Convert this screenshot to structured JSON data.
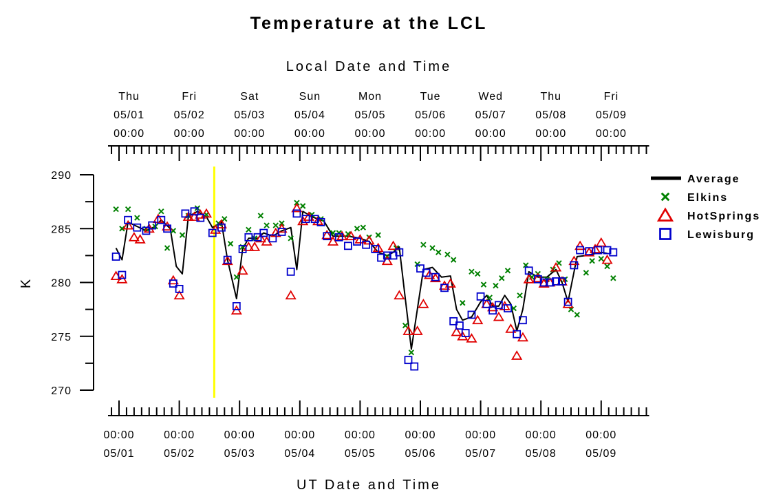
{
  "chart_data": {
    "type": "line",
    "title": "Temperature at the LCL",
    "top_axis_label": "Local Date and Time",
    "xlabel": "UT Date and Time",
    "ylabel": "K",
    "ylim": [
      270,
      290
    ],
    "y_ticks": [
      "270",
      "275",
      "280",
      "285",
      "290"
    ],
    "x_unit": "days since 05/01 00:00 UT",
    "xlim": [
      0,
      8.75
    ],
    "bottom_ticks": [
      {
        "time": "00:00",
        "date": "05/01"
      },
      {
        "time": "00:00",
        "date": "05/02"
      },
      {
        "time": "00:00",
        "date": "05/03"
      },
      {
        "time": "00:00",
        "date": "05/04"
      },
      {
        "time": "00:00",
        "date": "05/05"
      },
      {
        "time": "00:00",
        "date": "05/06"
      },
      {
        "time": "00:00",
        "date": "05/07"
      },
      {
        "time": "00:00",
        "date": "05/08"
      },
      {
        "time": "00:00",
        "date": "05/09"
      }
    ],
    "top_ticks": [
      {
        "day": "Thu",
        "date": "05/01",
        "time": "00:00"
      },
      {
        "day": "Fri",
        "date": "05/02",
        "time": "00:00"
      },
      {
        "day": "Sat",
        "date": "05/03",
        "time": "00:00"
      },
      {
        "day": "Sun",
        "date": "05/04",
        "time": "00:00"
      },
      {
        "day": "Mon",
        "date": "05/05",
        "time": "00:00"
      },
      {
        "day": "Tue",
        "date": "05/06",
        "time": "00:00"
      },
      {
        "day": "Wed",
        "date": "05/07",
        "time": "00:00"
      },
      {
        "day": "Thu",
        "date": "05/08",
        "time": "00:00"
      },
      {
        "day": "Fri",
        "date": "05/09",
        "time": "00:00"
      }
    ],
    "marker_line": {
      "x": 1.58,
      "color": "#ffff00"
    },
    "legend_position": "right",
    "series": [
      {
        "name": "Average",
        "marker": "line",
        "color": "#000000",
        "points": [
          [
            -0.05,
            283.2
          ],
          [
            0.05,
            282.1
          ],
          [
            0.15,
            285.6
          ],
          [
            0.3,
            285.2
          ],
          [
            0.45,
            284.8
          ],
          [
            0.6,
            285.2
          ],
          [
            0.7,
            285.8
          ],
          [
            0.85,
            285.0
          ],
          [
            0.95,
            281.5
          ],
          [
            1.05,
            280.8
          ],
          [
            1.15,
            286.1
          ],
          [
            1.3,
            286.6
          ],
          [
            1.45,
            286.1
          ],
          [
            1.55,
            285.1
          ],
          [
            1.7,
            285.6
          ],
          [
            1.8,
            282.1
          ],
          [
            1.95,
            278.5
          ],
          [
            2.05,
            283.1
          ],
          [
            2.15,
            284.1
          ],
          [
            2.3,
            284.1
          ],
          [
            2.4,
            284.6
          ],
          [
            2.55,
            284.3
          ],
          [
            2.7,
            284.8
          ],
          [
            2.85,
            285.1
          ],
          [
            2.95,
            281.2
          ],
          [
            3.05,
            286.6
          ],
          [
            3.2,
            286.1
          ],
          [
            3.4,
            285.7
          ],
          [
            3.55,
            284.3
          ],
          [
            3.8,
            284.3
          ],
          [
            4.0,
            284.1
          ],
          [
            4.15,
            283.8
          ],
          [
            4.3,
            282.8
          ],
          [
            4.45,
            282.5
          ],
          [
            4.55,
            282.8
          ],
          [
            4.65,
            283.3
          ],
          [
            4.75,
            278.5
          ],
          [
            4.85,
            273.8
          ],
          [
            4.95,
            277.5
          ],
          [
            5.05,
            281.2
          ],
          [
            5.2,
            281.4
          ],
          [
            5.35,
            280.5
          ],
          [
            5.5,
            280.6
          ],
          [
            5.6,
            277.5
          ],
          [
            5.7,
            276.5
          ],
          [
            5.85,
            276.8
          ],
          [
            6.0,
            278.2
          ],
          [
            6.1,
            278.8
          ],
          [
            6.2,
            277.8
          ],
          [
            6.3,
            277.8
          ],
          [
            6.4,
            278.8
          ],
          [
            6.5,
            278.0
          ],
          [
            6.6,
            275.5
          ],
          [
            6.7,
            277.5
          ],
          [
            6.8,
            281.0
          ],
          [
            6.95,
            280.5
          ],
          [
            7.1,
            280.5
          ],
          [
            7.25,
            281.2
          ],
          [
            7.35,
            280.0
          ],
          [
            7.45,
            278.2
          ],
          [
            7.6,
            282.4
          ],
          [
            7.75,
            282.5
          ],
          [
            8.0,
            282.8
          ],
          [
            8.1,
            282.7
          ]
        ]
      },
      {
        "name": "Elkins",
        "marker": "x",
        "color": "#008000",
        "points": [
          [
            -0.05,
            286.8
          ],
          [
            0.05,
            285.0
          ],
          [
            0.15,
            286.8
          ],
          [
            0.3,
            286.0
          ],
          [
            0.45,
            285.0
          ],
          [
            0.6,
            285.2
          ],
          [
            0.7,
            286.6
          ],
          [
            0.8,
            283.2
          ],
          [
            0.9,
            284.8
          ],
          [
            1.05,
            284.4
          ],
          [
            1.15,
            286.2
          ],
          [
            1.3,
            286.9
          ],
          [
            1.45,
            286.3
          ],
          [
            1.65,
            285.5
          ],
          [
            1.75,
            285.9
          ],
          [
            1.85,
            283.6
          ],
          [
            1.95,
            280.5
          ],
          [
            2.05,
            283.3
          ],
          [
            2.15,
            284.9
          ],
          [
            2.25,
            284.1
          ],
          [
            2.35,
            286.2
          ],
          [
            2.45,
            285.3
          ],
          [
            2.6,
            285.3
          ],
          [
            2.7,
            285.5
          ],
          [
            2.85,
            284.1
          ],
          [
            2.95,
            287.4
          ],
          [
            3.05,
            287.1
          ],
          [
            3.2,
            286.3
          ],
          [
            3.35,
            285.9
          ],
          [
            3.55,
            284.6
          ],
          [
            3.65,
            284.6
          ],
          [
            3.8,
            284.5
          ],
          [
            3.95,
            285.0
          ],
          [
            4.05,
            285.1
          ],
          [
            4.15,
            284.2
          ],
          [
            4.3,
            284.4
          ],
          [
            4.45,
            282.4
          ],
          [
            4.6,
            283.2
          ],
          [
            4.75,
            276.0
          ],
          [
            4.85,
            273.5
          ],
          [
            4.95,
            281.7
          ],
          [
            5.05,
            283.5
          ],
          [
            5.2,
            283.2
          ],
          [
            5.3,
            282.8
          ],
          [
            5.45,
            282.6
          ],
          [
            5.55,
            282.1
          ],
          [
            5.7,
            278.1
          ],
          [
            5.85,
            281.0
          ],
          [
            5.95,
            280.8
          ],
          [
            6.05,
            279.8
          ],
          [
            6.15,
            278.6
          ],
          [
            6.25,
            279.7
          ],
          [
            6.35,
            280.4
          ],
          [
            6.45,
            281.1
          ],
          [
            6.55,
            277.6
          ],
          [
            6.65,
            278.8
          ],
          [
            6.75,
            281.6
          ],
          [
            6.85,
            280.5
          ],
          [
            6.95,
            280.8
          ],
          [
            7.1,
            280.3
          ],
          [
            7.2,
            281.2
          ],
          [
            7.3,
            281.8
          ],
          [
            7.4,
            280.3
          ],
          [
            7.5,
            277.5
          ],
          [
            7.6,
            277.0
          ],
          [
            7.75,
            280.9
          ],
          [
            7.85,
            282.0
          ],
          [
            8.0,
            282.2
          ],
          [
            8.1,
            281.5
          ],
          [
            8.2,
            280.4
          ]
        ]
      },
      {
        "name": "HotSprings",
        "marker": "triangle",
        "color": "#e00000",
        "points": [
          [
            -0.05,
            280.6
          ],
          [
            0.05,
            280.3
          ],
          [
            0.15,
            285.3
          ],
          [
            0.25,
            284.2
          ],
          [
            0.35,
            284.0
          ],
          [
            0.5,
            285.0
          ],
          [
            0.65,
            285.9
          ],
          [
            0.8,
            285.2
          ],
          [
            0.9,
            280.2
          ],
          [
            1.0,
            278.8
          ],
          [
            1.15,
            286.1
          ],
          [
            1.25,
            286.1
          ],
          [
            1.35,
            286.3
          ],
          [
            1.45,
            286.4
          ],
          [
            1.6,
            284.9
          ],
          [
            1.7,
            285.4
          ],
          [
            1.8,
            282.0
          ],
          [
            1.95,
            277.4
          ],
          [
            2.05,
            281.1
          ],
          [
            2.15,
            283.3
          ],
          [
            2.25,
            283.3
          ],
          [
            2.35,
            284.1
          ],
          [
            2.45,
            283.8
          ],
          [
            2.6,
            284.6
          ],
          [
            2.7,
            285.0
          ],
          [
            2.85,
            278.8
          ],
          [
            2.95,
            286.9
          ],
          [
            3.05,
            285.7
          ],
          [
            3.15,
            286.1
          ],
          [
            3.3,
            285.7
          ],
          [
            3.45,
            284.4
          ],
          [
            3.55,
            283.8
          ],
          [
            3.7,
            284.3
          ],
          [
            3.85,
            284.3
          ],
          [
            4.0,
            284.0
          ],
          [
            4.15,
            283.9
          ],
          [
            4.3,
            283.2
          ],
          [
            4.45,
            282.0
          ],
          [
            4.55,
            283.4
          ],
          [
            4.65,
            278.8
          ],
          [
            4.8,
            275.5
          ],
          [
            4.95,
            275.5
          ],
          [
            5.05,
            278.0
          ],
          [
            5.15,
            280.7
          ],
          [
            5.25,
            280.4
          ],
          [
            5.4,
            279.7
          ],
          [
            5.5,
            279.9
          ],
          [
            5.6,
            275.4
          ],
          [
            5.7,
            275.0
          ],
          [
            5.85,
            274.8
          ],
          [
            5.95,
            276.5
          ],
          [
            6.1,
            278.0
          ],
          [
            6.2,
            277.7
          ],
          [
            6.3,
            276.8
          ],
          [
            6.4,
            277.8
          ],
          [
            6.5,
            275.7
          ],
          [
            6.6,
            273.2
          ],
          [
            6.7,
            274.9
          ],
          [
            6.8,
            280.3
          ],
          [
            6.95,
            280.4
          ],
          [
            7.05,
            279.9
          ],
          [
            7.15,
            280.0
          ],
          [
            7.25,
            281.4
          ],
          [
            7.35,
            280.1
          ],
          [
            7.45,
            278.0
          ],
          [
            7.55,
            282.0
          ],
          [
            7.65,
            283.4
          ],
          [
            7.8,
            282.8
          ],
          [
            7.9,
            283.1
          ],
          [
            8.0,
            283.7
          ],
          [
            8.1,
            282.1
          ]
        ]
      },
      {
        "name": "Lewisburg",
        "marker": "square",
        "color": "#0000cc",
        "points": [
          [
            -0.05,
            282.4
          ],
          [
            0.05,
            280.7
          ],
          [
            0.15,
            285.8
          ],
          [
            0.3,
            285.1
          ],
          [
            0.45,
            284.8
          ],
          [
            0.55,
            285.3
          ],
          [
            0.7,
            285.8
          ],
          [
            0.8,
            285.0
          ],
          [
            0.9,
            279.9
          ],
          [
            1.0,
            279.4
          ],
          [
            1.1,
            286.4
          ],
          [
            1.25,
            286.6
          ],
          [
            1.35,
            286.0
          ],
          [
            1.55,
            284.6
          ],
          [
            1.7,
            285.1
          ],
          [
            1.8,
            282.1
          ],
          [
            1.95,
            277.8
          ],
          [
            2.05,
            283.1
          ],
          [
            2.15,
            284.2
          ],
          [
            2.3,
            284.2
          ],
          [
            2.4,
            284.6
          ],
          [
            2.55,
            284.1
          ],
          [
            2.7,
            284.7
          ],
          [
            2.85,
            281.0
          ],
          [
            2.95,
            286.4
          ],
          [
            3.1,
            285.9
          ],
          [
            3.25,
            285.9
          ],
          [
            3.35,
            285.6
          ],
          [
            3.45,
            284.3
          ],
          [
            3.65,
            284.2
          ],
          [
            3.8,
            283.4
          ],
          [
            3.95,
            283.8
          ],
          [
            4.1,
            283.5
          ],
          [
            4.25,
            283.1
          ],
          [
            4.35,
            282.3
          ],
          [
            4.45,
            282.5
          ],
          [
            4.55,
            282.5
          ],
          [
            4.65,
            282.8
          ],
          [
            4.8,
            272.8
          ],
          [
            4.9,
            272.2
          ],
          [
            5.0,
            281.3
          ],
          [
            5.1,
            280.9
          ],
          [
            5.25,
            280.5
          ],
          [
            5.4,
            279.5
          ],
          [
            5.55,
            276.4
          ],
          [
            5.65,
            276.0
          ],
          [
            5.75,
            275.3
          ],
          [
            5.85,
            277.0
          ],
          [
            6.0,
            278.7
          ],
          [
            6.1,
            278.0
          ],
          [
            6.2,
            277.4
          ],
          [
            6.3,
            277.9
          ],
          [
            6.45,
            277.6
          ],
          [
            6.6,
            275.2
          ],
          [
            6.7,
            276.5
          ],
          [
            6.8,
            281.1
          ],
          [
            6.95,
            280.3
          ],
          [
            7.05,
            280.0
          ],
          [
            7.15,
            280.0
          ],
          [
            7.25,
            280.1
          ],
          [
            7.35,
            280.1
          ],
          [
            7.45,
            278.2
          ],
          [
            7.55,
            281.6
          ],
          [
            7.65,
            283.0
          ],
          [
            7.8,
            282.9
          ],
          [
            7.95,
            283.0
          ],
          [
            8.1,
            283.0
          ],
          [
            8.2,
            282.8
          ]
        ]
      }
    ]
  }
}
